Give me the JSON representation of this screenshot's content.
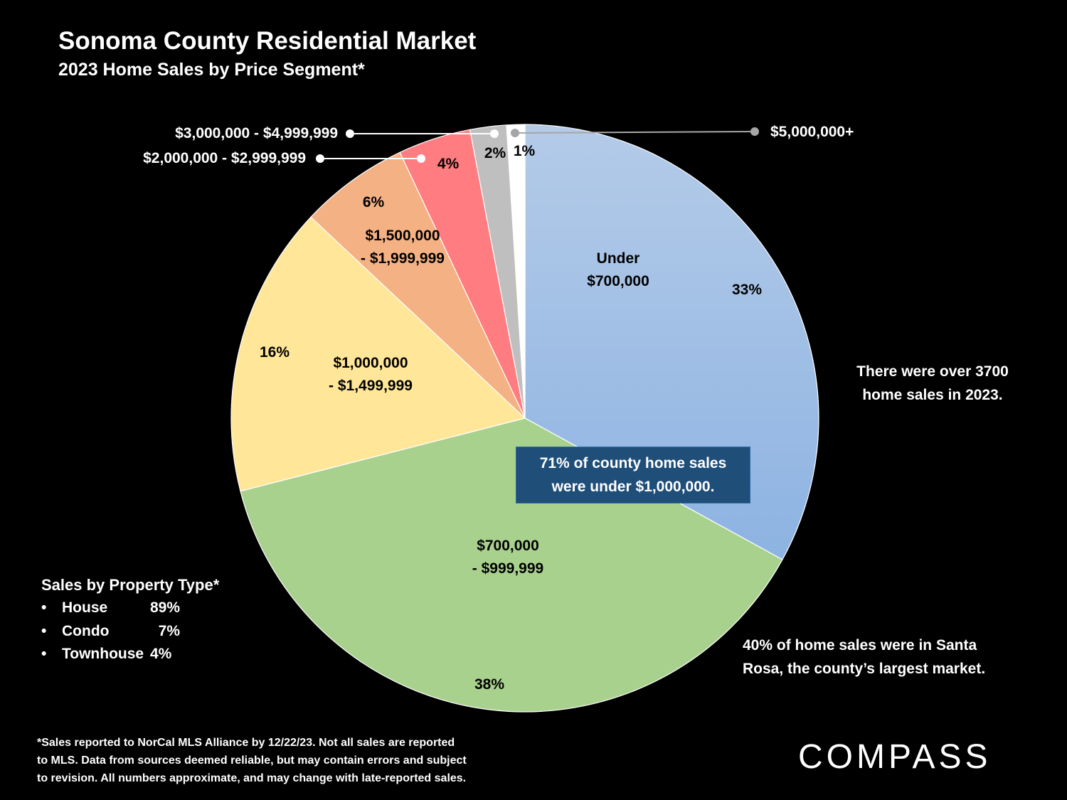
{
  "title": "Sonoma County Residential Market",
  "subtitle": "2023 Home Sales by Price Segment*",
  "chart_data": {
    "type": "pie",
    "start": "top, clockwise",
    "slices": [
      {
        "label": "Under $700,000",
        "label_lines": [
          "Under",
          "$700,000"
        ],
        "value": 33,
        "pct_label": "33%",
        "color": "#a3c0e6"
      },
      {
        "label": "$700,000 - $999,999",
        "label_lines": [
          "$700,000",
          "- $999,999"
        ],
        "value": 38,
        "pct_label": "38%",
        "color": "#a9d18e"
      },
      {
        "label": "$1,000,000 - $1,499,999",
        "label_lines": [
          "$1,000,000",
          "- $1,499,999"
        ],
        "value": 16,
        "pct_label": "16%",
        "color": "#ffe699"
      },
      {
        "label": "$1,500,000 - $1,999,999",
        "label_lines": [
          "$1,500,000",
          "- $1,999,999"
        ],
        "value": 6,
        "pct_label": "6%",
        "color": "#f4b183"
      },
      {
        "label": "$2,000,000 - $2,999,999",
        "value": 4,
        "pct_label": "4%",
        "color": "#ff7c80"
      },
      {
        "label": "$3,000,000 - $4,999,999",
        "value": 2,
        "pct_label": "2%",
        "color": "#bfbfbf"
      },
      {
        "label": "$5,000,000+",
        "value": 1,
        "pct_label": "1%",
        "color": "#ffffff"
      }
    ]
  },
  "callout": [
    "71% of county home sales",
    "were under $1,000,000."
  ],
  "notes": {
    "total": [
      "There were over 3700",
      "home sales in 2023."
    ],
    "santa_rosa": [
      "40% of home sales were in Santa",
      "Rosa, the county’s largest market."
    ]
  },
  "property_types": {
    "heading": "Sales by Property Type*",
    "items": [
      {
        "type": "House",
        "pct": "89%"
      },
      {
        "type": "Condo",
        "pct": "7%"
      },
      {
        "type": "Townhouse",
        "pct": "4%"
      }
    ]
  },
  "footnote": [
    "*Sales reported to NorCal MLS Alliance by 12/22/23. Not all sales are reported",
    "to MLS. Data from sources deemed reliable, but may contain errors and subject",
    "to revision. All numbers approximate, and may change with late-reported sales."
  ],
  "logo": "COMPASS"
}
